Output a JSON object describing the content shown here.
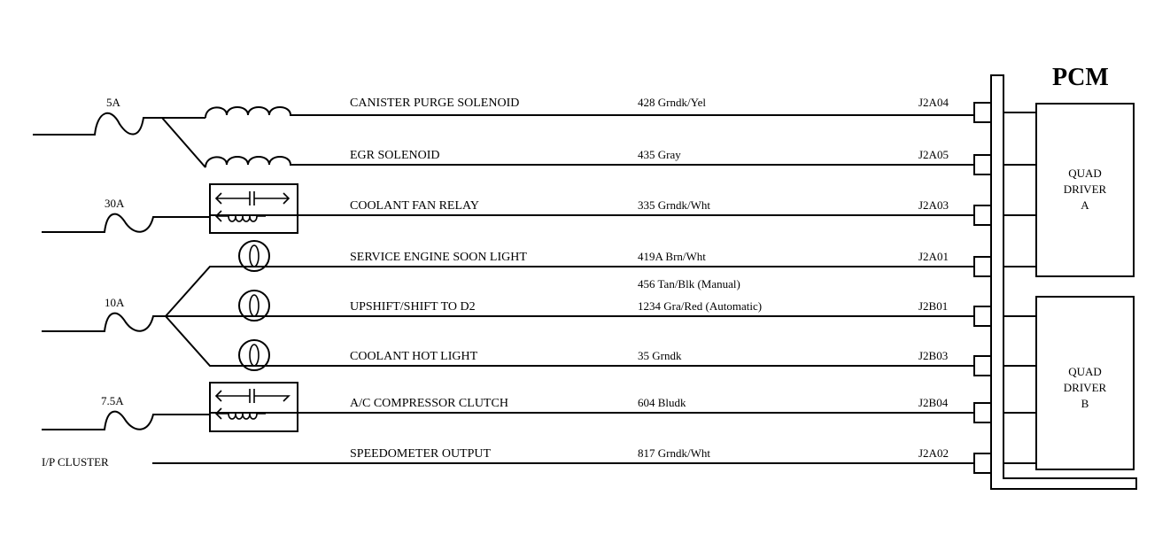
{
  "module": {
    "title": "PCM",
    "driver_a": [
      "QUAD",
      "DRIVER",
      "A"
    ],
    "driver_b": [
      "QUAD",
      "DRIVER",
      "B"
    ]
  },
  "fuses": [
    "5A",
    "30A",
    "10A",
    "7.5A"
  ],
  "source_label": "I/P CLUSTER",
  "circuits": [
    {
      "name": "CANISTER PURGE SOLENOID",
      "wire": "428 Grndk/Yel",
      "pin": "J2A04",
      "component": "solenoid-coil"
    },
    {
      "name": "EGR SOLENOID",
      "wire": "435 Gray",
      "pin": "J2A05",
      "component": "solenoid-coil"
    },
    {
      "name": "COOLANT FAN RELAY",
      "wire": "335 Grndk/Wht",
      "pin": "J2A03",
      "component": "relay"
    },
    {
      "name": "SERVICE ENGINE SOON LIGHT",
      "wire": "419A Brn/Wht",
      "pin": "J2A01",
      "component": "bulb"
    },
    {
      "name": "UPSHIFT/SHIFT TO D2",
      "wire": "1234  Gra/Red (Automatic)",
      "wire_alt": "456 Tan/Blk (Manual)",
      "pin": "J2B01",
      "component": "bulb"
    },
    {
      "name": "COOLANT HOT LIGHT",
      "wire": "35 Grndk",
      "pin": "J2B03",
      "component": "bulb"
    },
    {
      "name": "A/C COMPRESSOR CLUTCH",
      "wire": "604 Bludk",
      "pin": "J2B04",
      "component": "relay"
    },
    {
      "name": "SPEEDOMETER OUTPUT",
      "wire": "817 Grndk/Wht",
      "pin": "J2A02",
      "component": "none"
    }
  ]
}
